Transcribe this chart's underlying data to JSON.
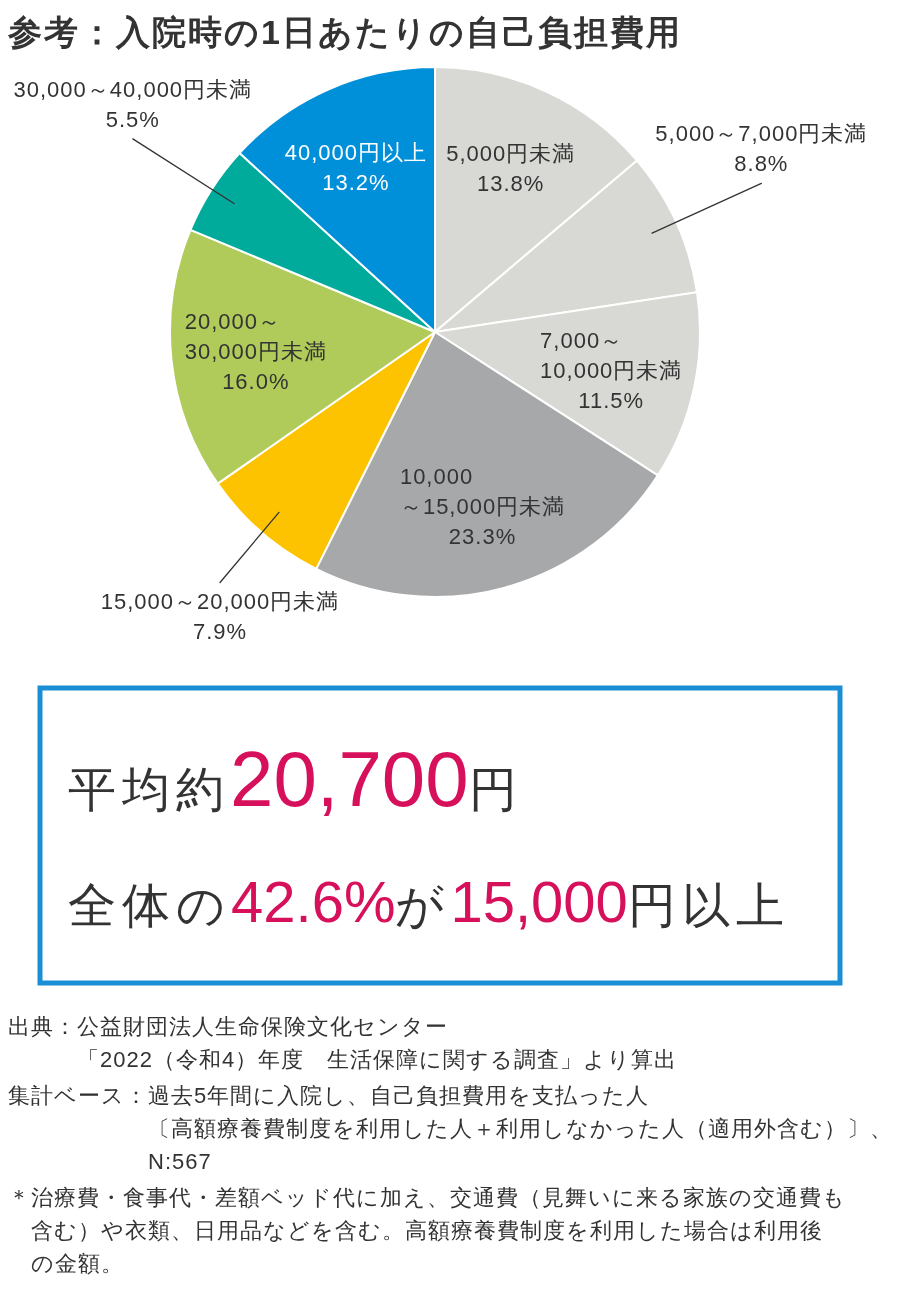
{
  "chart_data": {
    "type": "pie",
    "title": "参考：入院時の1日あたりの自己負担費用",
    "categories": [
      "5,000円未満",
      "5,000～7,000円未満",
      "7,000～\n10,000円未満",
      "10,000\n～15,000円未満",
      "15,000～20,000円未満",
      "20,000～\n30,000円未満",
      "30,000～40,000円未満",
      "40,000円以上"
    ],
    "values": [
      13.8,
      8.8,
      11.5,
      23.3,
      7.9,
      16.0,
      5.5,
      13.2
    ],
    "value_labels": [
      "13.8%",
      "8.8%",
      "11.5%",
      "23.3%",
      "7.9%",
      "16.0%",
      "5.5%",
      "13.2%"
    ],
    "colors": [
      "#d8d8d4",
      "#d8d8d4",
      "#d8d8d4",
      "#a7a8aa",
      "#fdc300",
      "#b0cb5a",
      "#00ab9c",
      "#0090d9"
    ],
    "annotations": [
      "平均約20,700円",
      "全体の42.6%が15,000円以上",
      "出典：公益財団法人生命保険文化センター",
      "「2022（令和4）年度　生活保障に関する調査」より算出",
      "集計ベース：過去5年間に入院し、自己負担費用を支払った人",
      "〔高額療養費制度を利用した人＋利用しなかった人（適用外含む）〕、",
      "N:567",
      "＊治療費・食事代・差額ベッド代に加え、交通費（見舞いに来る家族の交通費も",
      "含む）や衣類、日用品などを含む。高額療養費制度を利用した場合は利用後",
      "の金額。"
    ]
  }
}
